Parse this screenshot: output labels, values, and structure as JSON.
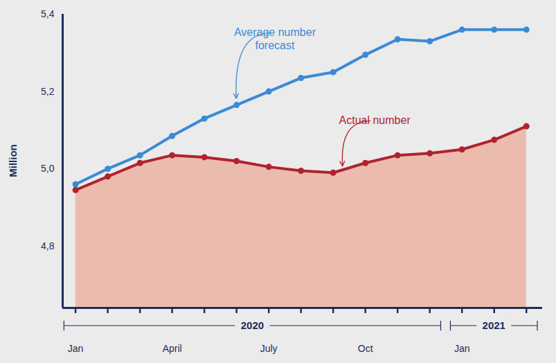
{
  "chart_data": {
    "type": "line",
    "categories": [
      "Jan",
      null,
      null,
      "April",
      null,
      null,
      "July",
      null,
      null,
      "Oct",
      null,
      null,
      "Jan",
      null,
      null
    ],
    "x_groups": [
      {
        "label": "2020",
        "start": 0,
        "end": 11
      },
      {
        "label": "2021",
        "start": 12,
        "end": 14
      }
    ],
    "ylabel": "Million",
    "ylim": [
      4.64,
      5.4
    ],
    "yticks": [
      {
        "value": 4.8,
        "label": "4,8"
      },
      {
        "value": 5.0,
        "label": "5,0"
      },
      {
        "value": 5.2,
        "label": "5,2"
      },
      {
        "value": 5.4,
        "label": "5,4"
      }
    ],
    "series": [
      {
        "name": "Average number forecast",
        "color": "#3a8ad6",
        "marker": "circle",
        "values": [
          4.96,
          5.0,
          5.035,
          5.085,
          5.13,
          5.165,
          5.2,
          5.235,
          5.25,
          5.295,
          5.335,
          5.33,
          5.36,
          5.36,
          5.36
        ]
      },
      {
        "name": "Actual number",
        "color": "#b0232e",
        "marker": "circle",
        "values": [
          4.945,
          4.98,
          5.015,
          5.035,
          5.03,
          5.02,
          5.005,
          4.995,
          4.99,
          5.015,
          5.035,
          5.04,
          5.05,
          5.075,
          5.11
        ]
      }
    ]
  }
}
